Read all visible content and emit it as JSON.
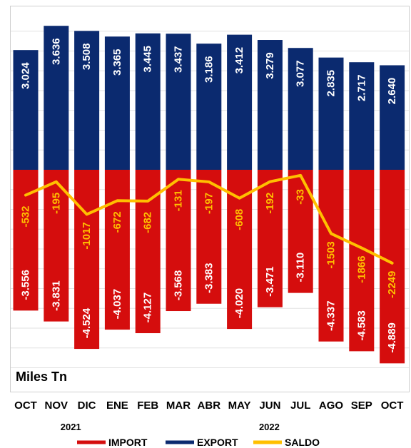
{
  "chart_data": {
    "type": "bar",
    "unit_label": "Miles Tn",
    "categories": [
      "OCT",
      "NOV",
      "DIC",
      "ENE",
      "FEB",
      "MAR",
      "ABR",
      "MAY",
      "JUN",
      "JUL",
      "AGO",
      "SEP",
      "OCT"
    ],
    "year_labels": [
      {
        "text": "2021",
        "category_index": 1.5
      },
      {
        "text": "2022",
        "category_index": 8
      }
    ],
    "series": [
      {
        "name": "EXPORT",
        "color": "#0b2a6f",
        "text_color": "#ffffff",
        "values": [
          3.024,
          3.636,
          3.508,
          3.365,
          3.445,
          3.437,
          3.186,
          3.412,
          3.279,
          3.077,
          2.835,
          2.717,
          2.64
        ],
        "labels": [
          "3.024",
          "3.636",
          "3.508",
          "3.365",
          "3.445",
          "3.437",
          "3.186",
          "3.412",
          "3.279",
          "3.077",
          "2.835",
          "2.717",
          "2.640"
        ]
      },
      {
        "name": "IMPORT",
        "color": "#d50d0d",
        "text_color": "#ffffff",
        "values": [
          -3.556,
          -3.831,
          -4.524,
          -4.037,
          -4.127,
          -3.568,
          -3.383,
          -4.02,
          -3.471,
          -3.11,
          -4.337,
          -4.583,
          -4.889
        ],
        "labels": [
          "-3.556",
          "-3.831",
          "-4.524",
          "-4.037",
          "-4.127",
          "-3.568",
          "-3.383",
          "-4.020",
          "-3.471",
          "-3.110",
          "-4.337",
          "-4.583",
          "-4.889"
        ]
      },
      {
        "name": "SALDO",
        "color": "#ffc000",
        "text_color": "#ffc000",
        "values": [
          -0.532,
          -0.195,
          -1.017,
          -0.672,
          -0.682,
          -0.131,
          -0.197,
          -0.608,
          -0.192,
          -0.033,
          -1.503,
          -1.866,
          -2.249
        ],
        "labels": [
          "-532",
          "-195",
          "-1017",
          "-672",
          "-682",
          "-131",
          "-197",
          "-608",
          "-192",
          "-33",
          "-1503",
          "-1866",
          "-2249"
        ]
      }
    ],
    "legend": {
      "position": "bottom",
      "items": [
        "IMPORT",
        "EXPORT",
        "SALDO"
      ]
    },
    "ylim": [
      -5.1,
      3.9
    ],
    "grid": true
  }
}
